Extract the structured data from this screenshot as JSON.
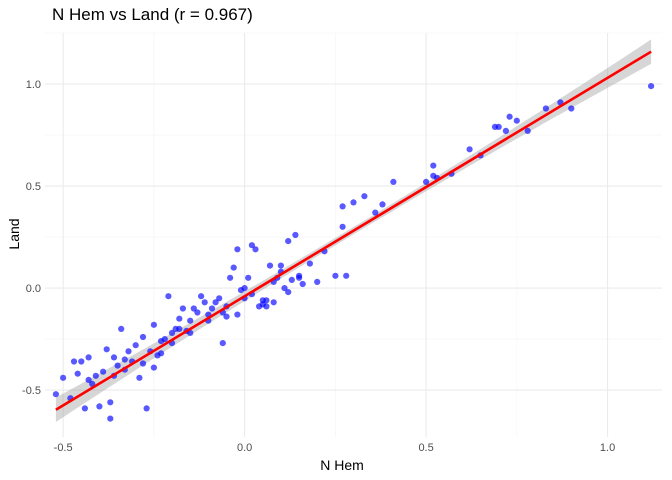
{
  "chart_data": {
    "type": "scatter",
    "title": "N Hem vs Land (r = 0.967)",
    "xlabel": "N Hem",
    "ylabel": "Land",
    "xlim": [
      -0.55,
      1.15
    ],
    "ylim": [
      -0.73,
      1.25
    ],
    "x_ticks": [
      -0.5,
      0.0,
      0.5,
      1.0
    ],
    "x_tick_labels": [
      "-0.5",
      "0.0",
      "0.5",
      "1.0"
    ],
    "y_ticks": [
      -0.5,
      0.0,
      0.5,
      1.0
    ],
    "y_tick_labels": [
      "-0.5",
      "0.0",
      "0.5",
      "1.0"
    ],
    "grid": true,
    "point_color": "#0000ff",
    "fit_line_color": "#ff0000",
    "confidence_band_color": "#999999",
    "fit": {
      "slope": 1.07,
      "intercept": -0.04,
      "x_range": [
        -0.52,
        1.12
      ],
      "band_halfwidth_center": 0.018,
      "band_halfwidth_edge": 0.06
    },
    "x": [
      -0.52,
      -0.5,
      -0.48,
      -0.47,
      -0.46,
      -0.45,
      -0.44,
      -0.43,
      -0.42,
      -0.41,
      -0.4,
      -0.39,
      -0.38,
      -0.37,
      -0.36,
      -0.35,
      -0.34,
      -0.33,
      -0.32,
      -0.31,
      -0.3,
      -0.29,
      -0.28,
      -0.27,
      -0.26,
      -0.25,
      -0.24,
      -0.23,
      -0.22,
      -0.21,
      -0.2,
      -0.19,
      -0.18,
      -0.17,
      -0.16,
      -0.15,
      -0.14,
      -0.13,
      -0.12,
      -0.11,
      -0.1,
      -0.09,
      -0.08,
      -0.07,
      -0.06,
      -0.05,
      -0.04,
      -0.03,
      -0.02,
      -0.01,
      0.0,
      0.01,
      0.02,
      0.03,
      0.04,
      0.05,
      0.06,
      0.07,
      0.08,
      0.09,
      0.1,
      0.11,
      0.12,
      0.13,
      0.14,
      0.15,
      0.16,
      0.18,
      0.2,
      0.22,
      0.25,
      0.27,
      0.28,
      0.3,
      0.33,
      0.36,
      0.38,
      0.41,
      0.5,
      0.52,
      0.53,
      0.57,
      0.62,
      0.65,
      0.69,
      0.7,
      0.72,
      0.75,
      0.78,
      0.83,
      0.87,
      0.9,
      1.12,
      -0.36,
      -0.33,
      -0.28,
      -0.25,
      -0.2,
      -0.15,
      -0.1,
      -0.05,
      0.0,
      0.05,
      0.1,
      0.15,
      0.02,
      0.08,
      0.12,
      -0.02,
      0.06,
      0.27,
      0.52,
      0.73,
      -0.43,
      -0.37,
      -0.23,
      -0.18,
      -0.06
    ],
    "y": [
      -0.52,
      -0.44,
      -0.54,
      -0.36,
      -0.42,
      -0.36,
      -0.59,
      -0.34,
      -0.47,
      -0.43,
      -0.58,
      -0.41,
      -0.3,
      -0.64,
      -0.43,
      -0.38,
      -0.2,
      -0.35,
      -0.31,
      -0.36,
      -0.28,
      -0.44,
      -0.24,
      -0.59,
      -0.31,
      -0.18,
      -0.33,
      -0.26,
      -0.25,
      -0.04,
      -0.22,
      -0.2,
      -0.2,
      -0.1,
      -0.21,
      -0.16,
      -0.1,
      -0.12,
      -0.04,
      -0.07,
      -0.16,
      -0.1,
      -0.07,
      -0.05,
      -0.12,
      -0.09,
      0.05,
      0.1,
      0.19,
      -0.01,
      -0.05,
      0.05,
      0.21,
      0.19,
      -0.09,
      -0.08,
      -0.06,
      0.11,
      0.03,
      0.05,
      0.08,
      0.0,
      -0.02,
      0.04,
      0.26,
      0.06,
      0.02,
      0.12,
      0.03,
      0.18,
      0.06,
      0.3,
      0.06,
      0.42,
      0.45,
      0.37,
      0.41,
      0.52,
      0.52,
      0.6,
      0.54,
      0.56,
      0.68,
      0.65,
      0.79,
      0.79,
      0.77,
      0.82,
      0.77,
      0.88,
      0.91,
      0.88,
      0.99,
      -0.34,
      -0.4,
      -0.37,
      -0.39,
      -0.27,
      -0.22,
      -0.13,
      -0.14,
      0.0,
      -0.06,
      0.11,
      0.05,
      -0.03,
      -0.07,
      0.23,
      -0.13,
      -0.09,
      0.4,
      0.55,
      0.84,
      -0.45,
      -0.56,
      -0.32,
      -0.15,
      -0.27
    ]
  }
}
